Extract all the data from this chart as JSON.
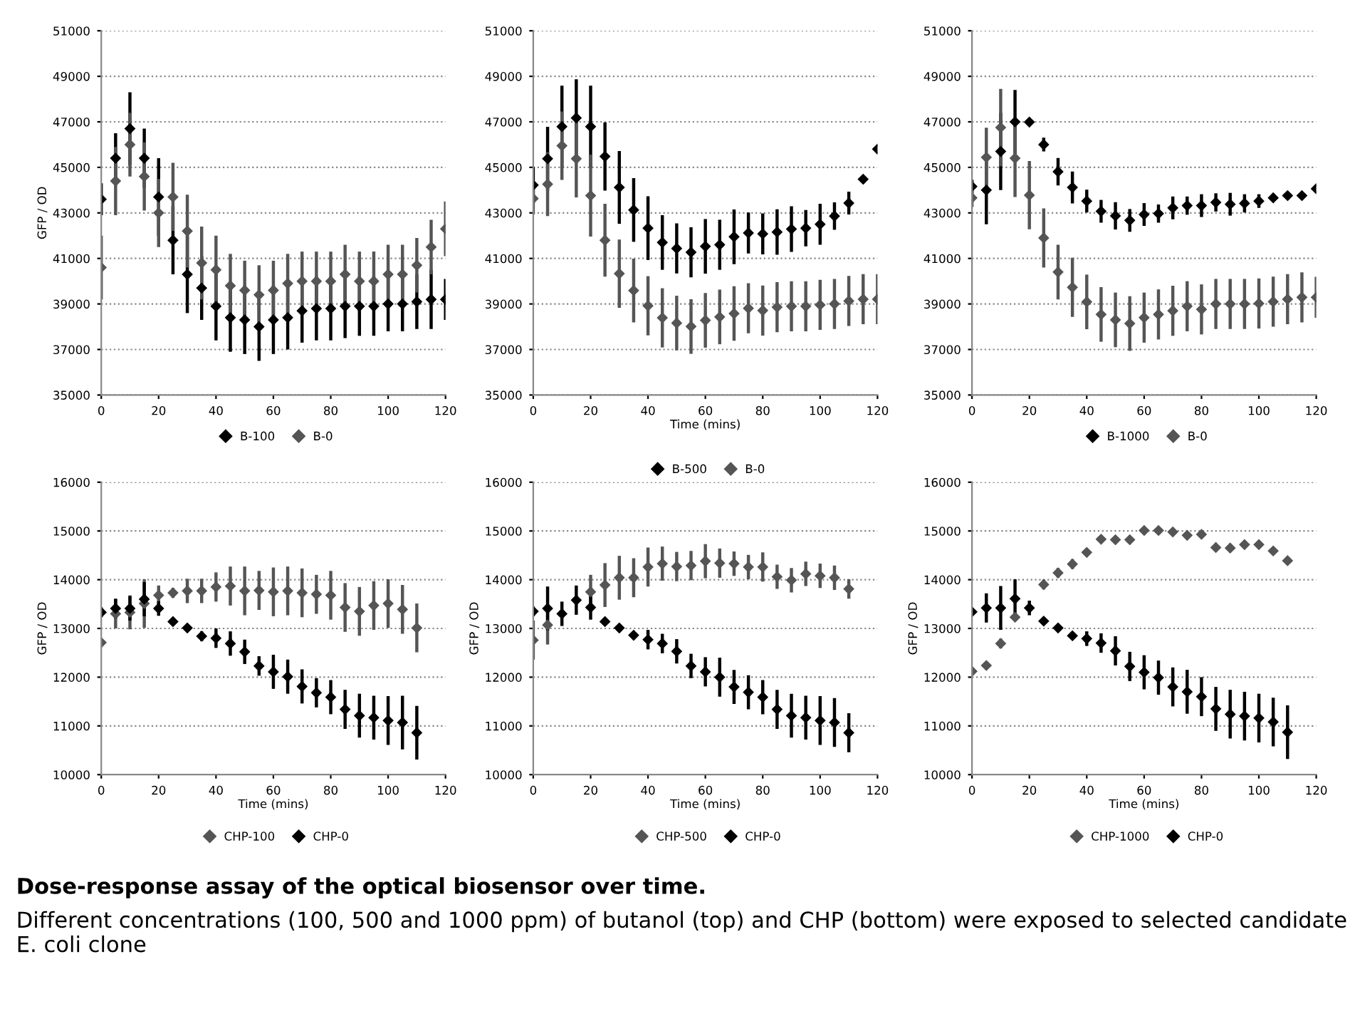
{
  "chart_data": [
    {
      "type": "scatter",
      "ylabel": "GFP / OD",
      "x": [
        0,
        5,
        10,
        15,
        20,
        25,
        30,
        35,
        40,
        45,
        50,
        55,
        60,
        65,
        70,
        75,
        80,
        85,
        90,
        95,
        100,
        105,
        110,
        115,
        120
      ],
      "xlim": [
        0,
        120
      ],
      "xticks": [
        0,
        20,
        40,
        60,
        80,
        100,
        120
      ],
      "ylim": [
        35000,
        51000
      ],
      "yticks": [
        35000,
        37000,
        39000,
        41000,
        43000,
        45000,
        47000,
        49000,
        51000
      ],
      "grid": "y",
      "marker": "diamond",
      "legend": "bottom",
      "series": [
        {
          "name": "B-100",
          "color": "#000000",
          "values": [
            43600,
            45400,
            46700,
            45400,
            43700,
            41800,
            40300,
            39700,
            38900,
            38400,
            38300,
            38000,
            38300,
            38400,
            38700,
            38800,
            38800,
            38900,
            38900,
            38900,
            39000,
            39000,
            39100,
            39200,
            39200
          ],
          "errors": [
            700,
            1100,
            1600,
            1300,
            1700,
            1500,
            1700,
            1400,
            1500,
            1500,
            1500,
            1500,
            1500,
            1400,
            1400,
            1400,
            1400,
            1400,
            1300,
            1300,
            1200,
            1200,
            1200,
            1300,
            900
          ]
        },
        {
          "name": "B-0",
          "color": "#555555",
          "values": [
            40600,
            44400,
            46000,
            44600,
            43000,
            43700,
            42200,
            40800,
            40500,
            39800,
            39600,
            39400,
            39600,
            39900,
            40000,
            40000,
            40000,
            40300,
            40000,
            40000,
            40300,
            40300,
            40700,
            41500,
            42300
          ],
          "errors": [
            1400,
            1500,
            1400,
            1500,
            1500,
            1500,
            1600,
            1600,
            1500,
            1400,
            1300,
            1300,
            1300,
            1300,
            1300,
            1300,
            1300,
            1300,
            1300,
            1300,
            1300,
            1300,
            1200,
            1200,
            1200
          ]
        }
      ]
    },
    {
      "type": "scatter",
      "xlabel": "Time (mins)",
      "x": [
        0,
        5,
        10,
        15,
        20,
        25,
        30,
        35,
        40,
        45,
        50,
        55,
        60,
        65,
        70,
        75,
        80,
        85,
        90,
        95,
        100,
        105,
        110,
        115,
        120
      ],
      "xlim": [
        0,
        120
      ],
      "xticks": [
        0,
        20,
        40,
        60,
        80,
        100,
        120
      ],
      "ylim": [
        35000,
        51000
      ],
      "yticks": [
        35000,
        37000,
        39000,
        41000,
        43000,
        45000,
        47000,
        49000,
        51000
      ],
      "grid": "y",
      "marker": "diamond",
      "legend": "bottom",
      "series": [
        {
          "name": "B-500",
          "color": "#000000",
          "values": [
            44220,
            45380,
            46790,
            47170,
            46790,
            45480,
            44120,
            43130,
            42330,
            41700,
            41440,
            41270,
            41530,
            41600,
            41950,
            42120,
            42080,
            42160,
            42290,
            42330,
            42500,
            42860,
            43430,
            44480,
            45800
          ],
          "errors": [
            800,
            1400,
            1800,
            1700,
            1800,
            1500,
            1600,
            1400,
            1400,
            1200,
            1100,
            1100,
            1200,
            1100,
            1200,
            900,
            900,
            1000,
            1000,
            800,
            900,
            600,
            500,
            null,
            null
          ]
        },
        {
          "name": "B-0",
          "color": "#555555",
          "values": [
            43630,
            44260,
            45950,
            45380,
            43760,
            41800,
            40330,
            39590,
            38920,
            38390,
            38160,
            38010,
            38280,
            38430,
            38580,
            38810,
            38710,
            38860,
            38900,
            38900,
            38960,
            39000,
            39130,
            39210,
            39210
          ],
          "errors": [
            700,
            1400,
            1500,
            1700,
            1800,
            1600,
            1500,
            1400,
            1300,
            1300,
            1200,
            1200,
            1200,
            1200,
            1200,
            1100,
            1100,
            1100,
            1100,
            1100,
            1100,
            1100,
            1100,
            1100,
            1100
          ]
        }
      ]
    },
    {
      "type": "scatter",
      "x": [
        0,
        5,
        10,
        15,
        20,
        25,
        30,
        35,
        40,
        45,
        50,
        55,
        60,
        65,
        70,
        75,
        80,
        85,
        90,
        95,
        100,
        105,
        110,
        115,
        120
      ],
      "xlim": [
        0,
        120
      ],
      "xticks": [
        0,
        20,
        40,
        60,
        80,
        100,
        120
      ],
      "ylim": [
        35000,
        51000
      ],
      "yticks": [
        35000,
        37000,
        39000,
        41000,
        43000,
        45000,
        47000,
        49000,
        51000
      ],
      "grid": "y",
      "marker": "diamond",
      "legend": "bottom",
      "series": [
        {
          "name": "B-1000",
          "color": "#000000",
          "values": [
            44160,
            44000,
            45700,
            47000,
            46990,
            46000,
            44810,
            44120,
            43520,
            43070,
            42870,
            42670,
            42930,
            42970,
            43220,
            43320,
            43320,
            43460,
            43380,
            43420,
            43520,
            43660,
            43760,
            43760,
            44060
          ],
          "errors": [
            300,
            1500,
            1700,
            1400,
            null,
            300,
            600,
            700,
            500,
            500,
            600,
            500,
            500,
            400,
            500,
            400,
            500,
            400,
            500,
            400,
            300,
            null,
            null,
            null,
            null
          ]
        },
        {
          "name": "B-0",
          "color": "#555555",
          "values": [
            43660,
            45440,
            46750,
            45400,
            43780,
            41900,
            40400,
            39730,
            39090,
            38540,
            38300,
            38140,
            38400,
            38540,
            38700,
            38900,
            38760,
            39000,
            39000,
            39000,
            39020,
            39100,
            39210,
            39290,
            39290
          ],
          "errors": [
            400,
            1300,
            1700,
            1700,
            1500,
            1300,
            1200,
            1300,
            1200,
            1200,
            1200,
            1200,
            1100,
            1100,
            1100,
            1100,
            1100,
            1100,
            1100,
            1100,
            1100,
            1100,
            1100,
            1100,
            900
          ]
        }
      ]
    },
    {
      "type": "scatter",
      "xlabel": "Time (mins)",
      "ylabel": "GFP / OD",
      "x": [
        0,
        5,
        10,
        15,
        20,
        25,
        30,
        35,
        40,
        45,
        50,
        55,
        60,
        65,
        70,
        75,
        80,
        85,
        90,
        95,
        100,
        105,
        110
      ],
      "xlim": [
        0,
        120
      ],
      "xticks": [
        0,
        20,
        40,
        60,
        80,
        100,
        120
      ],
      "ylim": [
        10000,
        16000
      ],
      "yticks": [
        10000,
        11000,
        12000,
        13000,
        14000,
        15000,
        16000
      ],
      "grid": "y",
      "marker": "diamond",
      "legend": "bottom",
      "series": [
        {
          "name": "CHP-100",
          "color": "#555555",
          "values": [
            12710,
            13300,
            13330,
            13510,
            13680,
            13730,
            13770,
            13770,
            13850,
            13870,
            13770,
            13780,
            13750,
            13770,
            13730,
            13700,
            13680,
            13430,
            13350,
            13470,
            13510,
            13390,
            13010
          ],
          "errors": [
            null,
            300,
            350,
            500,
            200,
            100,
            250,
            250,
            300,
            400,
            500,
            400,
            500,
            500,
            500,
            400,
            500,
            500,
            500,
            500,
            500,
            500,
            500
          ]
        },
        {
          "name": "CHP-0",
          "color": "#000000",
          "values": [
            13330,
            13410,
            13410,
            13600,
            13410,
            13140,
            13010,
            12840,
            12800,
            12690,
            12520,
            12230,
            12110,
            12010,
            11810,
            11680,
            11590,
            11340,
            11210,
            11170,
            11110,
            11070,
            10860
          ],
          "errors": [
            100,
            200,
            250,
            350,
            150,
            null,
            null,
            100,
            200,
            250,
            250,
            200,
            350,
            350,
            350,
            300,
            350,
            400,
            450,
            450,
            500,
            550,
            550
          ]
        }
      ]
    },
    {
      "type": "scatter",
      "xlabel": "Time (mins)",
      "ylabel": "GFP / OD",
      "x": [
        0,
        5,
        10,
        15,
        20,
        25,
        30,
        35,
        40,
        45,
        50,
        55,
        60,
        65,
        70,
        75,
        80,
        85,
        90,
        95,
        100,
        105,
        110
      ],
      "xlim": [
        0,
        120
      ],
      "xticks": [
        0,
        20,
        40,
        60,
        80,
        100,
        120
      ],
      "ylim": [
        10000,
        16000
      ],
      "yticks": [
        10000,
        11000,
        12000,
        13000,
        14000,
        15000,
        16000
      ],
      "grid": "y",
      "marker": "diamond",
      "legend": "bottom",
      "series": [
        {
          "name": "CHP-500",
          "color": "#555555",
          "values": [
            12760,
            13070,
            null,
            null,
            13750,
            13890,
            14040,
            14040,
            14260,
            14330,
            14270,
            14290,
            14380,
            14340,
            14330,
            14260,
            14260,
            14060,
            13990,
            14120,
            14080,
            14040,
            13810
          ],
          "errors": [
            400,
            400,
            null,
            null,
            350,
            450,
            450,
            400,
            400,
            350,
            300,
            300,
            350,
            300,
            250,
            250,
            300,
            250,
            250,
            250,
            250,
            250,
            200
          ]
        },
        {
          "name": "CHP-0",
          "color": "#000000",
          "values": [
            13350,
            13410,
            13300,
            13580,
            13430,
            13140,
            13010,
            12860,
            12770,
            12690,
            12530,
            12230,
            12110,
            12000,
            11800,
            11690,
            11590,
            11340,
            11210,
            11170,
            11110,
            11070,
            10860
          ],
          "errors": [
            100,
            450,
            250,
            300,
            250,
            null,
            null,
            null,
            200,
            200,
            250,
            250,
            300,
            400,
            350,
            350,
            350,
            400,
            450,
            450,
            500,
            500,
            400
          ]
        }
      ]
    },
    {
      "type": "scatter",
      "xlabel": "Time (mins)",
      "ylabel": "GFP / OD",
      "x": [
        0,
        5,
        10,
        15,
        20,
        25,
        30,
        35,
        40,
        45,
        50,
        55,
        60,
        65,
        70,
        75,
        80,
        85,
        90,
        95,
        100,
        105,
        110
      ],
      "xlim": [
        0,
        120
      ],
      "xticks": [
        0,
        20,
        40,
        60,
        80,
        100,
        120
      ],
      "ylim": [
        10000,
        16000
      ],
      "yticks": [
        10000,
        11000,
        12000,
        13000,
        14000,
        15000,
        16000
      ],
      "grid": "y",
      "marker": "diamond",
      "legend": "bottom",
      "series": [
        {
          "name": "CHP-1000",
          "color": "#555555",
          "values": [
            12120,
            12240,
            12690,
            13230,
            null,
            13900,
            14140,
            14320,
            14560,
            14830,
            14820,
            14820,
            15010,
            15010,
            14980,
            14910,
            14930,
            14660,
            14650,
            14720,
            14720,
            14590,
            14390
          ],
          "errors": [
            null,
            null,
            100,
            null,
            null,
            100,
            100,
            100,
            null,
            null,
            null,
            null,
            null,
            null,
            null,
            null,
            null,
            null,
            null,
            null,
            null,
            null,
            null
          ]
        },
        {
          "name": "CHP-0",
          "color": "#000000",
          "values": [
            13340,
            13420,
            13420,
            13610,
            13420,
            13150,
            13010,
            12850,
            12790,
            12700,
            12540,
            12220,
            12100,
            11990,
            11800,
            11700,
            11600,
            11350,
            11240,
            11200,
            11160,
            11080,
            10870
          ],
          "errors": [
            null,
            300,
            450,
            400,
            150,
            null,
            null,
            null,
            150,
            200,
            300,
            300,
            350,
            350,
            400,
            450,
            400,
            450,
            500,
            500,
            500,
            500,
            550
          ]
        }
      ],
      "annotations": [
        "Dose-response assay of the optical biosensor over time.",
        "Different concentrations (100, 500 and 1000 ppm) of butanol (top) and CHP (bottom) were exposed to selected candidate E. coli clone"
      ]
    }
  ]
}
